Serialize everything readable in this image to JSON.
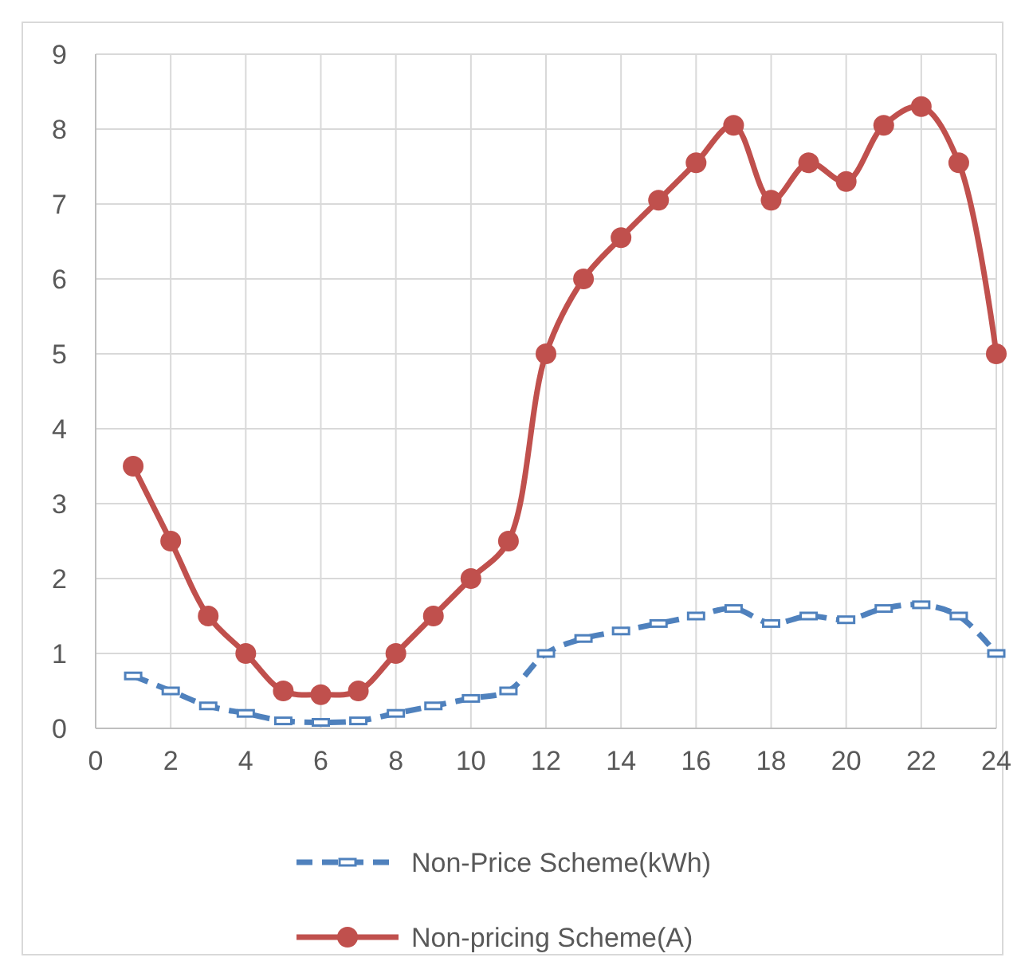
{
  "chart_data": {
    "type": "line",
    "x": [
      1,
      2,
      3,
      4,
      5,
      6,
      7,
      8,
      9,
      10,
      11,
      12,
      13,
      14,
      15,
      16,
      17,
      18,
      19,
      20,
      21,
      22,
      23,
      24
    ],
    "series": [
      {
        "name": "Non-Price Scheme(kWh)",
        "color": "#4f81bd",
        "marker": "square",
        "line_style": "dashed",
        "values": [
          0.7,
          0.5,
          0.3,
          0.2,
          0.1,
          0.08,
          0.1,
          0.2,
          0.3,
          0.4,
          0.5,
          1,
          1.2,
          1.3,
          1.4,
          1.5,
          1.6,
          1.4,
          1.5,
          1.45,
          1.6,
          1.65,
          1.5,
          1
        ]
      },
      {
        "name": "Non-pricing Scheme(A)",
        "color": "#c0504d",
        "marker": "circle",
        "line_style": "solid",
        "values": [
          3.5,
          2.5,
          1.5,
          1,
          0.5,
          0.45,
          0.5,
          1,
          1.5,
          2,
          2.5,
          5,
          6,
          6.55,
          7.05,
          7.55,
          8.05,
          7.05,
          7.55,
          7.3,
          8.05,
          8.3,
          7.55,
          5
        ]
      }
    ],
    "xlim": [
      0,
      24
    ],
    "xticks": [
      0,
      2,
      4,
      6,
      8,
      10,
      12,
      14,
      16,
      18,
      20,
      22,
      24
    ],
    "ylim": [
      0,
      9
    ],
    "yticks": [
      0,
      1,
      2,
      3,
      4,
      5,
      6,
      7,
      8,
      9
    ],
    "grid": true,
    "legend": "bottom"
  }
}
